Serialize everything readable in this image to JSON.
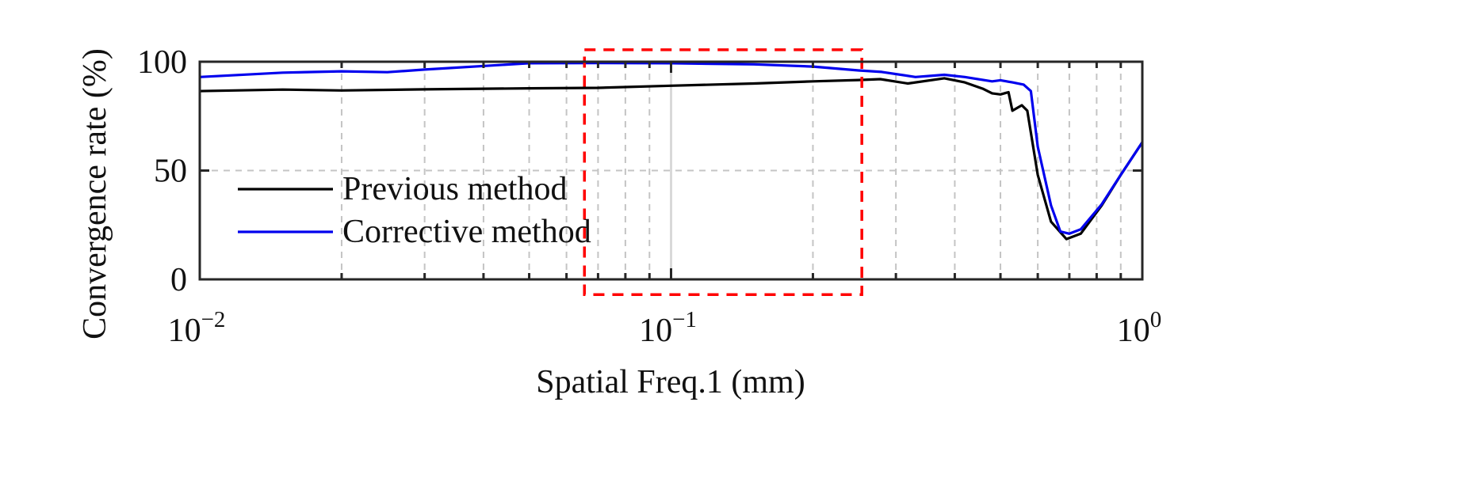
{
  "chart_data": {
    "type": "line",
    "xscale": "log",
    "xlabel": "Spatial Freq.1 (mm)",
    "ylabel": "Convergence rate (%)",
    "xlim": [
      0.01,
      1
    ],
    "ylim": [
      0,
      100
    ],
    "grid": true,
    "xticks": [
      {
        "value": 0.01,
        "base": "10",
        "exp": "−2"
      },
      {
        "value": 0.1,
        "base": "10",
        "exp": "−1"
      },
      {
        "value": 1,
        "base": "10",
        "exp": "0"
      }
    ],
    "yticks": [
      {
        "value": 0,
        "label": "0"
      },
      {
        "value": 50,
        "label": "50"
      },
      {
        "value": 100,
        "label": "100"
      }
    ],
    "legend_position": "lower-left",
    "series": [
      {
        "name": "Previous method",
        "color": "#000000",
        "x": [
          0.01,
          0.015,
          0.02,
          0.03,
          0.05,
          0.07,
          0.1,
          0.15,
          0.2,
          0.25,
          0.278,
          0.318,
          0.38,
          0.42,
          0.46,
          0.48,
          0.5,
          0.52,
          0.53,
          0.555,
          0.57,
          0.6,
          0.64,
          0.69,
          0.74,
          0.82,
          0.9,
          1.0
        ],
        "y": [
          86.5,
          87.2,
          86.8,
          87.3,
          87.8,
          88.0,
          89.0,
          90.0,
          91.0,
          91.6,
          92.0,
          90.0,
          92.4,
          90.5,
          87.5,
          85.5,
          85.0,
          86.0,
          77.5,
          80.0,
          77.5,
          48.0,
          26.5,
          18.5,
          21.0,
          34.0,
          48.0,
          63.0
        ]
      },
      {
        "name": "Corrective method",
        "color": "#0000ee",
        "x": [
          0.01,
          0.015,
          0.02,
          0.025,
          0.03,
          0.05,
          0.07,
          0.1,
          0.15,
          0.2,
          0.25,
          0.28,
          0.33,
          0.38,
          0.42,
          0.48,
          0.5,
          0.53,
          0.56,
          0.58,
          0.6,
          0.64,
          0.67,
          0.7,
          0.74,
          0.82,
          0.9,
          1.0
        ],
        "y": [
          93.0,
          95.0,
          95.6,
          95.2,
          96.4,
          99.3,
          99.4,
          99.3,
          98.8,
          97.8,
          96.0,
          95.3,
          93.0,
          94.0,
          93.0,
          91.0,
          91.5,
          90.5,
          89.5,
          86.5,
          61.0,
          34.0,
          22.0,
          21.0,
          23.0,
          34.5,
          48.0,
          63.0
        ]
      }
    ],
    "annotations": [
      {
        "type": "dashed-rectangle",
        "color": "#ff0000",
        "x_range": [
          0.0655,
          0.254
        ],
        "y_range": [
          -7,
          105.5
        ]
      }
    ]
  }
}
